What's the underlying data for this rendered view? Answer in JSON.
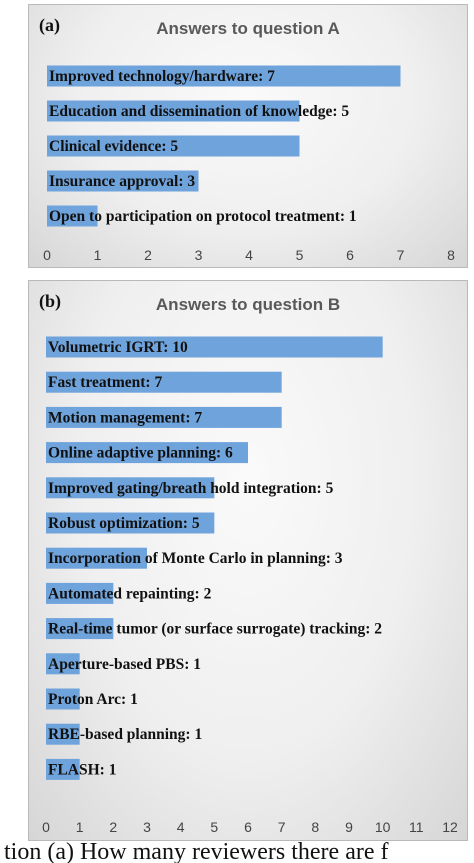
{
  "chart_data": [
    {
      "type": "bar",
      "orientation": "horizontal",
      "panel_tag": "(a)",
      "title": "Answers to question A",
      "bar_color": "#6fa3dc",
      "xlim": [
        0,
        8
      ],
      "x_ticks": [
        "0",
        "1",
        "2",
        "3",
        "4",
        "5",
        "6",
        "7",
        "8"
      ],
      "categories": [
        "Improved technology/hardware: 7",
        "Education and dissemination of knowledge: 5",
        "Clinical evidence: 5",
        "Insurance approval: 3",
        "Open to participation on protocol treatment: 1"
      ],
      "values": [
        7,
        5,
        5,
        3,
        1
      ]
    },
    {
      "type": "bar",
      "orientation": "horizontal",
      "panel_tag": "(b)",
      "title": "Answers to question B",
      "bar_color": "#6fa3dc",
      "xlim": [
        0,
        12
      ],
      "x_ticks": [
        "0",
        "1",
        "2",
        "3",
        "4",
        "5",
        "6",
        "7",
        "8",
        "9",
        "10",
        "11",
        "12"
      ],
      "categories": [
        "Volumetric IGRT: 10",
        "Fast treatment: 7",
        "Motion management: 7",
        "Online adaptive planning: 6",
        "Improved gating/breath hold integration: 5",
        "Robust optimization: 5",
        "Incorporation of Monte Carlo in planning: 3",
        "Automated repainting: 2",
        "Real-time tumor (or surface surrogate) tracking: 2",
        "Aperture-based PBS: 1",
        "Proton Arc: 1",
        "RBE-based planning: 1",
        "FLASH: 1"
      ],
      "values": [
        10,
        7,
        7,
        6,
        5,
        5,
        3,
        2,
        2,
        1,
        1,
        1,
        1
      ]
    }
  ],
  "caption": "tion (a) How many reviewers there are f"
}
